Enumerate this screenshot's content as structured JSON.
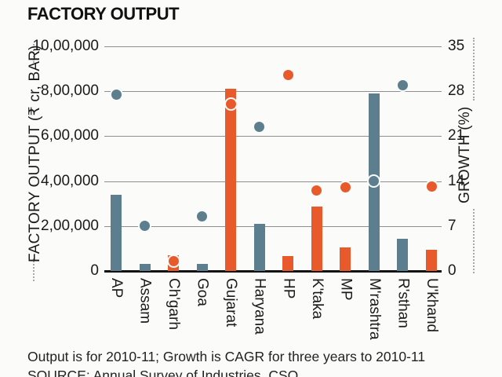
{
  "title": "FACTORY OUTPUT",
  "footer": {
    "note": "Output is for 2010-11; Growth is CAGR for three years to 2010-11",
    "source": "SOURCE: Annual Survey of Industries, CSO"
  },
  "chart_data": {
    "type": "bar",
    "subtype": "dual-axis bar with growth dots",
    "categories": [
      "AP",
      "Assam",
      "Ch'garh",
      "Goa",
      "Gujarat",
      "Haryana",
      "HP",
      "K'taka",
      "MP",
      "M'rashtra",
      "R'sthan",
      "U'khand"
    ],
    "series": [
      {
        "name": "Factory output (₹ cr, bar)",
        "type": "bar",
        "axis": "left",
        "values": [
          340000,
          33000,
          70000,
          30000,
          810000,
          210000,
          65000,
          285000,
          105000,
          790000,
          145000,
          95000
        ]
      },
      {
        "name": "Growth (%, dot)",
        "type": "scatter",
        "axis": "right",
        "values": [
          27.5,
          7,
          1.5,
          8.5,
          26,
          22.5,
          30.5,
          12.5,
          13,
          14,
          29,
          13.2
        ]
      }
    ],
    "category_colors": [
      "#5C7E8F",
      "#5C7E8F",
      "#E85A2B",
      "#5C7E8F",
      "#E85A2B",
      "#5C7E8F",
      "#E85A2B",
      "#E85A2B",
      "#E85A2B",
      "#5C7E8F",
      "#5C7E8F",
      "#E85A2B"
    ],
    "left_axis": {
      "label": "FACTORY OUTPUT (₹ cr, BAR)",
      "ticks": [
        "10,00,000",
        "8,00,000",
        "6,00,000",
        "4,00,000",
        "2,00,000",
        "0"
      ],
      "range": [
        0,
        1000000
      ]
    },
    "right_axis": {
      "label": "GROWTH (%)",
      "ticks": [
        "35",
        "28",
        "21",
        "14",
        "7",
        "0"
      ],
      "range": [
        0,
        35
      ]
    },
    "grid": true,
    "legend": "none",
    "colors": {
      "orange": "#E85A2B",
      "blue_gray": "#5C7E8F",
      "gridline": "#8e8e8e",
      "axis": "#111111"
    }
  }
}
